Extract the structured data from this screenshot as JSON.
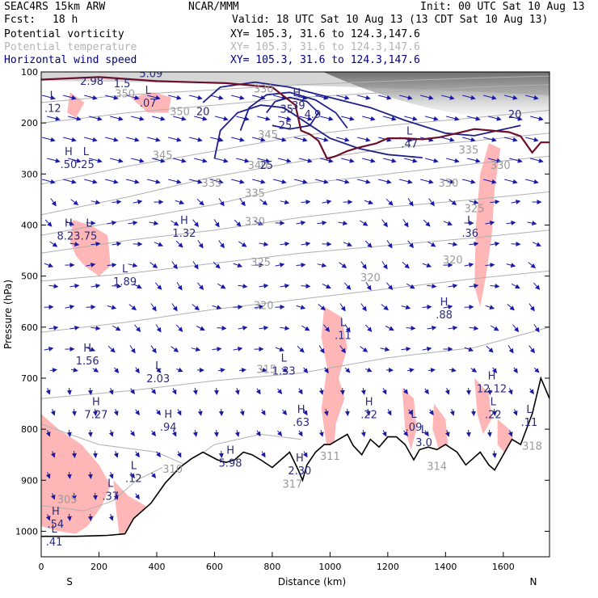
{
  "header": {
    "model": "SEAC4RS 15km ARW",
    "org": "NCAR/MMM",
    "init": "Init: 00 UTC Sat 10 Aug 13",
    "fcst_label": "Fcst:",
    "fcst_value": "18 h",
    "valid": "Valid: 18 UTC Sat 10 Aug 13 (13 CDT Sat 10 Aug 13)",
    "fields": [
      {
        "name": "Potential vorticity",
        "xy": "XY= 105.3, 31.6 to 124.3,147.6",
        "color": "#000000",
        "xy_color": "#000000"
      },
      {
        "name": "Potential temperature",
        "xy": "XY= 105.3, 31.6 to 124.3,147.6",
        "color": "#b4b4b4",
        "xy_color": "#b4b4b4"
      },
      {
        "name": "Horizontal wind speed",
        "xy": "XY= 105.3, 31.6 to 124.3,147.6",
        "color": "#000080",
        "xy_color": "#000080"
      }
    ]
  },
  "chart_data": {
    "type": "cross-section",
    "xlabel": "Distance (km)",
    "ylabel": "Pressure (hPa)",
    "xlim": [
      0,
      1760
    ],
    "ylim": [
      1050,
      100
    ],
    "x_ticks": [
      0,
      200,
      400,
      600,
      800,
      1000,
      1200,
      1400,
      1600
    ],
    "y_ticks": [
      100,
      200,
      300,
      400,
      500,
      600,
      700,
      800,
      900,
      1000
    ],
    "left_end_label": "S",
    "right_end_label": "N",
    "terrain": [
      [
        0,
        1010
      ],
      [
        120,
        1010
      ],
      [
        230,
        1008
      ],
      [
        290,
        1005
      ],
      [
        320,
        975
      ],
      [
        380,
        945
      ],
      [
        430,
        905
      ],
      [
        480,
        875
      ],
      [
        520,
        858
      ],
      [
        560,
        845
      ],
      [
        610,
        860
      ],
      [
        640,
        865
      ],
      [
        670,
        860
      ],
      [
        700,
        845
      ],
      [
        730,
        850
      ],
      [
        760,
        860
      ],
      [
        800,
        875
      ],
      [
        830,
        860
      ],
      [
        860,
        845
      ],
      [
        890,
        880
      ],
      [
        905,
        900
      ],
      [
        920,
        870
      ],
      [
        950,
        845
      ],
      [
        980,
        830
      ],
      [
        1000,
        830
      ],
      [
        1030,
        820
      ],
      [
        1060,
        810
      ],
      [
        1080,
        832
      ],
      [
        1110,
        850
      ],
      [
        1140,
        820
      ],
      [
        1170,
        835
      ],
      [
        1200,
        815
      ],
      [
        1230,
        815
      ],
      [
        1260,
        830
      ],
      [
        1290,
        860
      ],
      [
        1310,
        840
      ],
      [
        1340,
        835
      ],
      [
        1370,
        840
      ],
      [
        1400,
        830
      ],
      [
        1440,
        845
      ],
      [
        1470,
        870
      ],
      [
        1500,
        855
      ],
      [
        1520,
        845
      ],
      [
        1550,
        870
      ],
      [
        1570,
        880
      ],
      [
        1600,
        850
      ],
      [
        1630,
        820
      ],
      [
        1660,
        830
      ],
      [
        1700,
        770
      ],
      [
        1730,
        700
      ],
      [
        1760,
        740
      ]
    ],
    "theta_contours": [
      {
        "label": "305",
        "points": [
          [
            0,
            950
          ],
          [
            80,
            955
          ],
          [
            150,
            960
          ],
          [
            250,
            940
          ],
          [
            330,
            900
          ],
          [
            420,
            875
          ]
        ]
      },
      {
        "label": "310",
        "points": [
          [
            0,
            790
          ],
          [
            200,
            830
          ],
          [
            400,
            845
          ],
          [
            500,
            870
          ],
          [
            600,
            830
          ],
          [
            760,
            810
          ],
          [
            900,
            820
          ]
        ]
      },
      {
        "label": "315",
        "points": [
          [
            0,
            740
          ],
          [
            300,
            725
          ],
          [
            600,
            705
          ],
          [
            900,
            690
          ],
          [
            1200,
            660
          ],
          [
            1500,
            640
          ],
          [
            1760,
            600
          ]
        ]
      },
      {
        "label": "320",
        "points": [
          [
            0,
            610
          ],
          [
            300,
            590
          ],
          [
            600,
            565
          ],
          [
            900,
            545
          ],
          [
            1200,
            525
          ],
          [
            1500,
            505
          ],
          [
            1760,
            490
          ]
        ]
      },
      {
        "label": "325",
        "points": [
          [
            0,
            510
          ],
          [
            300,
            495
          ],
          [
            600,
            475
          ],
          [
            900,
            455
          ],
          [
            1200,
            440
          ],
          [
            1500,
            425
          ],
          [
            1760,
            410
          ]
        ]
      },
      {
        "label": "330",
        "points": [
          [
            0,
            455
          ],
          [
            300,
            430
          ],
          [
            600,
            410
          ],
          [
            900,
            385
          ],
          [
            1200,
            365
          ],
          [
            1500,
            350
          ],
          [
            1760,
            335
          ]
        ]
      },
      {
        "label": "335",
        "points": [
          [
            0,
            420
          ],
          [
            300,
            390
          ],
          [
            600,
            360
          ],
          [
            900,
            320
          ],
          [
            1200,
            300
          ],
          [
            1500,
            280
          ],
          [
            1760,
            265
          ]
        ]
      },
      {
        "label": "340",
        "points": [
          [
            0,
            380
          ],
          [
            300,
            345
          ],
          [
            600,
            305
          ],
          [
            900,
            275
          ],
          [
            1200,
            250
          ],
          [
            1500,
            235
          ],
          [
            1760,
            220
          ]
        ]
      },
      {
        "label": "345",
        "points": [
          [
            0,
            320
          ],
          [
            300,
            285
          ],
          [
            600,
            255
          ],
          [
            900,
            225
          ],
          [
            1200,
            205
          ],
          [
            1500,
            190
          ],
          [
            1760,
            175
          ]
        ]
      },
      {
        "label": "350",
        "points": [
          [
            0,
            200
          ],
          [
            300,
            180
          ],
          [
            600,
            165
          ],
          [
            900,
            150
          ],
          [
            1200,
            140
          ],
          [
            1500,
            130
          ],
          [
            1760,
            125
          ]
        ]
      },
      {
        "label": "355",
        "points": [
          [
            0,
            160
          ],
          [
            300,
            145
          ],
          [
            600,
            135
          ],
          [
            900,
            125
          ],
          [
            1200,
            118
          ],
          [
            1500,
            112
          ],
          [
            1760,
            108
          ]
        ]
      }
    ],
    "pv_contour": {
      "points": [
        [
          0,
          115
        ],
        [
          200,
          110
        ],
        [
          400,
          118
        ],
        [
          640,
          122
        ],
        [
          800,
          130
        ],
        [
          880,
          165
        ],
        [
          900,
          215
        ],
        [
          930,
          222
        ],
        [
          960,
          235
        ],
        [
          990,
          270
        ],
        [
          1020,
          265
        ],
        [
          1060,
          255
        ],
        [
          1100,
          248
        ],
        [
          1160,
          240
        ],
        [
          1200,
          230
        ],
        [
          1260,
          230
        ],
        [
          1320,
          232
        ],
        [
          1380,
          228
        ],
        [
          1440,
          220
        ],
        [
          1500,
          212
        ],
        [
          1560,
          215
        ],
        [
          1620,
          218
        ],
        [
          1660,
          226
        ],
        [
          1700,
          258
        ],
        [
          1730,
          238
        ],
        [
          1760,
          238
        ]
      ]
    },
    "wind_speed_contours": [
      {
        "label": "20",
        "points": [
          [
            560,
            160
          ],
          [
            620,
            130
          ],
          [
            740,
            120
          ],
          [
            860,
            130
          ],
          [
            1000,
            150
          ],
          [
            1140,
            170
          ],
          [
            1260,
            195
          ],
          [
            1400,
            220
          ],
          [
            1500,
            225
          ],
          [
            1580,
            215
          ],
          [
            1660,
            205
          ]
        ]
      },
      {
        "label": "25",
        "points": [
          [
            600,
            270
          ],
          [
            620,
            215
          ],
          [
            680,
            180
          ],
          [
            760,
            165
          ],
          [
            840,
            170
          ],
          [
            920,
            200
          ],
          [
            1000,
            230
          ],
          [
            1100,
            250
          ],
          [
            1200,
            262
          ],
          [
            1320,
            268
          ]
        ]
      },
      {
        "label": "30",
        "points": [
          [
            690,
            215
          ],
          [
            720,
            170
          ],
          [
            780,
            145
          ],
          [
            860,
            140
          ],
          [
            950,
            155
          ],
          [
            1020,
            180
          ],
          [
            1060,
            210
          ]
        ]
      },
      {
        "label": "35",
        "points": [
          [
            780,
            180
          ],
          [
            810,
            158
          ],
          [
            860,
            150
          ],
          [
            920,
            158
          ],
          [
            960,
            180
          ],
          [
            930,
            205
          ],
          [
            860,
            212
          ],
          [
            800,
            205
          ]
        ]
      }
    ],
    "hl_labels": [
      {
        "type": "L",
        "x": 40,
        "p": 175,
        "value": ".12"
      },
      {
        "type": "L",
        "x": 370,
        "p": 165,
        "value": ".07"
      },
      {
        "type": "H",
        "x": 95,
        "p": 285,
        "value": ".50"
      },
      {
        "type": "L",
        "x": 155,
        "p": 285,
        "value": ".25"
      },
      {
        "type": "H",
        "x": 885,
        "p": 170,
        "value": ".39"
      },
      {
        "type": "L",
        "x": 1275,
        "p": 245,
        "value": ".47"
      },
      {
        "type": "H",
        "x": 95,
        "p": 425,
        "value": "8.23"
      },
      {
        "type": "L",
        "x": 165,
        "p": 425,
        "value": ".75"
      },
      {
        "type": "H",
        "x": 495,
        "p": 420,
        "value": "1.32"
      },
      {
        "type": "L",
        "x": 290,
        "p": 515,
        "value": "1.89"
      },
      {
        "type": "L",
        "x": 1485,
        "p": 420,
        "value": ".36"
      },
      {
        "type": "H",
        "x": 1395,
        "p": 580,
        "value": ".88"
      },
      {
        "type": "L",
        "x": 1045,
        "p": 620,
        "value": ".11"
      },
      {
        "type": "H",
        "x": 160,
        "p": 670,
        "value": "1.56"
      },
      {
        "type": "L",
        "x": 405,
        "p": 705,
        "value": "2.03"
      },
      {
        "type": "L",
        "x": 840,
        "p": 690,
        "value": "1.33"
      },
      {
        "type": "H",
        "x": 190,
        "p": 775,
        "value": "7.27"
      },
      {
        "type": "H",
        "x": 440,
        "p": 800,
        "value": ".94"
      },
      {
        "type": "H",
        "x": 900,
        "p": 790,
        "value": ".63"
      },
      {
        "type": "H",
        "x": 1135,
        "p": 775,
        "value": ".22"
      },
      {
        "type": "L",
        "x": 1290,
        "p": 800,
        "value": ".09"
      },
      {
        "type": "L",
        "x": 1325,
        "p": 830,
        "value": "3.0"
      },
      {
        "type": "H",
        "x": 1560,
        "p": 725,
        "value": "12.12"
      },
      {
        "type": "L",
        "x": 1565,
        "p": 775,
        "value": ".22"
      },
      {
        "type": "L",
        "x": 1690,
        "p": 790,
        "value": ".11"
      },
      {
        "type": "H",
        "x": 655,
        "p": 870,
        "value": "5.98"
      },
      {
        "type": "H",
        "x": 895,
        "p": 885,
        "value": "2.30"
      },
      {
        "type": "L",
        "x": 320,
        "p": 900,
        "value": ".12"
      },
      {
        "type": "L",
        "x": 240,
        "p": 935,
        "value": ".37"
      },
      {
        "type": "H",
        "x": 50,
        "p": 990,
        "value": ".54"
      },
      {
        "type": "L",
        "x": 45,
        "p": 1025,
        "value": ".41"
      }
    ],
    "misc_values": [
      {
        "x": 175,
        "p": 125,
        "text": "2.98",
        "kind": "pv"
      },
      {
        "x": 280,
        "p": 130,
        "text": "1.5",
        "kind": "pv"
      },
      {
        "x": 380,
        "p": 110,
        "text": "5.09",
        "kind": "pv"
      },
      {
        "x": 940,
        "p": 190,
        "text": "4.9",
        "kind": "pv"
      },
      {
        "x": 850,
        "p": 180,
        "text": "35",
        "kind": "wind"
      },
      {
        "x": 845,
        "p": 212,
        "text": "25",
        "kind": "wind"
      },
      {
        "x": 780,
        "p": 290,
        "text": "25",
        "kind": "wind"
      },
      {
        "x": 1640,
        "p": 190,
        "text": "20",
        "kind": "wind"
      },
      {
        "x": 560,
        "p": 185,
        "text": "20",
        "kind": "wind"
      },
      {
        "x": 1460,
        "p": 1,
        "text": "",
        "kind": "none"
      }
    ],
    "theta_labels": [
      {
        "x": 90,
        "p": 945,
        "text": "305"
      },
      {
        "x": 455,
        "p": 885,
        "text": "310"
      },
      {
        "x": 870,
        "p": 915,
        "text": "317"
      },
      {
        "x": 1000,
        "p": 860,
        "text": "311"
      },
      {
        "x": 1370,
        "p": 880,
        "text": "314"
      },
      {
        "x": 1700,
        "p": 840,
        "text": "318"
      },
      {
        "x": 780,
        "p": 690,
        "text": "315"
      },
      {
        "x": 770,
        "p": 565,
        "text": "320"
      },
      {
        "x": 1425,
        "p": 475,
        "text": "320"
      },
      {
        "x": 1140,
        "p": 510,
        "text": "320"
      },
      {
        "x": 760,
        "p": 480,
        "text": "325"
      },
      {
        "x": 1500,
        "p": 375,
        "text": "325"
      },
      {
        "x": 740,
        "p": 400,
        "text": "330"
      },
      {
        "x": 1410,
        "p": 325,
        "text": "330"
      },
      {
        "x": 1590,
        "p": 290,
        "text": "330"
      },
      {
        "x": 590,
        "p": 325,
        "text": "335"
      },
      {
        "x": 740,
        "p": 345,
        "text": "335"
      },
      {
        "x": 1480,
        "p": 260,
        "text": "335"
      },
      {
        "x": 420,
        "p": 270,
        "text": "345"
      },
      {
        "x": 750,
        "p": 290,
        "text": "340"
      },
      {
        "x": 785,
        "p": 230,
        "text": "345"
      },
      {
        "x": 480,
        "p": 185,
        "text": "350"
      },
      {
        "x": 290,
        "p": 150,
        "text": "350"
      },
      {
        "x": 770,
        "p": 140,
        "text": "330"
      }
    ]
  }
}
